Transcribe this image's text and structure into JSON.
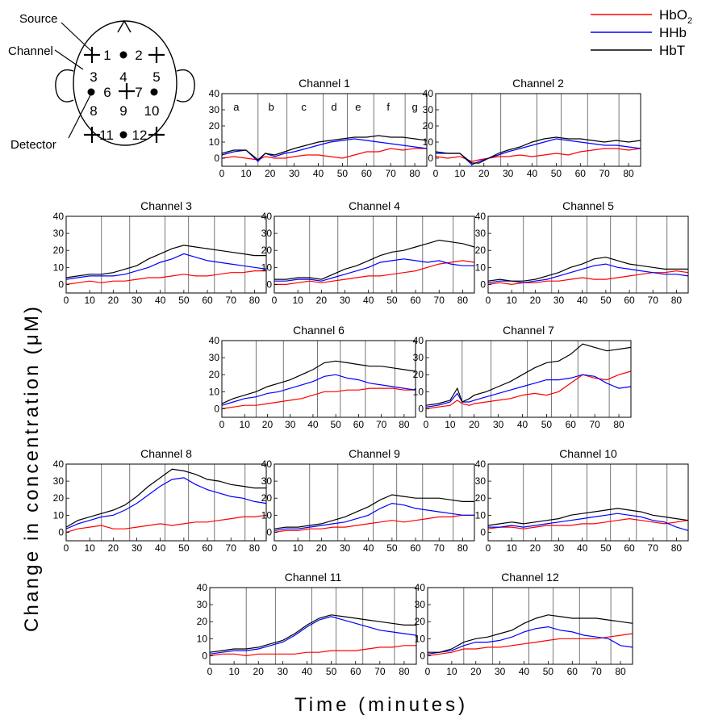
{
  "figure": {
    "ylabel": "Change in concentration (μM)",
    "xlabel": "Time (minutes)"
  },
  "head_diagram": {
    "labels": {
      "source": "Source",
      "channel": "Channel",
      "detector": "Detector"
    },
    "channel_numbers": [
      "1",
      "2",
      "3",
      "4",
      "5",
      "6",
      "7",
      "8",
      "9",
      "10",
      "11",
      "12"
    ]
  },
  "legend": [
    {
      "name": "HbO",
      "subscript": "2",
      "color": "#ff0000"
    },
    {
      "name": "HHb",
      "subscript": "",
      "color": "#0000ff"
    },
    {
      "name": "HbT",
      "subscript": "",
      "color": "#000000"
    }
  ],
  "chart_data": {
    "type": "line",
    "x_ticks": [
      0,
      10,
      20,
      30,
      40,
      50,
      60,
      70,
      80
    ],
    "y_ticks": [
      0,
      10,
      20,
      30,
      40
    ],
    "xlim": [
      0,
      85
    ],
    "ylim": [
      -5,
      40
    ],
    "grid": "vertical lines at epoch boundaries",
    "epoch_boundaries": [
      15,
      27,
      42,
      52,
      63,
      76
    ],
    "epoch_labels": [
      {
        "label": "a",
        "x": 6
      },
      {
        "label": "b",
        "x": 20.5
      },
      {
        "label": "c",
        "x": 34
      },
      {
        "label": "d",
        "x": 46.5
      },
      {
        "label": "e",
        "x": 56.5
      },
      {
        "label": "f",
        "x": 69
      },
      {
        "label": "g",
        "x": 80
      }
    ],
    "series_order": [
      "HbO2",
      "HHb",
      "HbT"
    ],
    "channels": [
      {
        "title": "Channel 1",
        "x": [
          0,
          5,
          10,
          15,
          18,
          22,
          26,
          30,
          35,
          40,
          45,
          50,
          55,
          60,
          65,
          70,
          75,
          80,
          85
        ],
        "HbO2": [
          0,
          1,
          0,
          -1,
          1,
          0,
          0,
          1,
          2,
          2,
          1,
          0,
          2,
          4,
          4,
          6,
          5,
          6,
          6
        ],
        "HHb": [
          2,
          4,
          5,
          -2,
          3,
          1,
          3,
          4,
          6,
          8,
          10,
          11,
          12,
          11,
          10,
          9,
          8,
          7,
          6
        ],
        "HbT": [
          3,
          5,
          5,
          -1,
          3,
          2,
          4,
          6,
          8,
          10,
          11,
          12,
          13,
          13,
          14,
          13,
          13,
          12,
          11
        ]
      },
      {
        "title": "Channel 2",
        "x": [
          0,
          5,
          10,
          15,
          18,
          22,
          26,
          30,
          35,
          40,
          45,
          50,
          55,
          60,
          65,
          70,
          75,
          80,
          85
        ],
        "HbO2": [
          1,
          0,
          1,
          -2,
          -1,
          0,
          1,
          1,
          2,
          1,
          2,
          3,
          2,
          4,
          5,
          6,
          6,
          5,
          6
        ],
        "HHb": [
          3,
          3,
          3,
          -4,
          -2,
          0,
          2,
          4,
          6,
          8,
          10,
          12,
          11,
          10,
          9,
          8,
          8,
          7,
          6
        ],
        "HbT": [
          4,
          3,
          3,
          -3,
          -3,
          0,
          3,
          5,
          7,
          10,
          12,
          13,
          12,
          12,
          11,
          10,
          11,
          10,
          11
        ]
      },
      {
        "title": "Channel 3",
        "x": [
          0,
          5,
          10,
          15,
          20,
          25,
          30,
          35,
          40,
          45,
          50,
          55,
          60,
          65,
          70,
          75,
          80,
          85
        ],
        "HbO2": [
          0,
          1,
          2,
          1,
          2,
          2,
          3,
          4,
          4,
          5,
          6,
          5,
          5,
          6,
          7,
          7,
          8,
          8
        ],
        "HHb": [
          3,
          4,
          5,
          5,
          5,
          6,
          8,
          10,
          13,
          15,
          18,
          16,
          14,
          13,
          12,
          11,
          10,
          9
        ],
        "HbT": [
          4,
          5,
          6,
          6,
          7,
          9,
          11,
          15,
          18,
          21,
          23,
          22,
          21,
          20,
          19,
          18,
          17,
          17
        ]
      },
      {
        "title": "Channel 4",
        "x": [
          0,
          5,
          10,
          15,
          20,
          25,
          30,
          35,
          40,
          45,
          50,
          55,
          60,
          65,
          70,
          75,
          80,
          85
        ],
        "HbO2": [
          0,
          0,
          1,
          2,
          1,
          2,
          3,
          4,
          5,
          5,
          6,
          7,
          8,
          10,
          12,
          13,
          14,
          13
        ],
        "HHb": [
          2,
          2,
          3,
          3,
          2,
          4,
          6,
          8,
          10,
          13,
          14,
          15,
          14,
          13,
          14,
          12,
          11,
          11
        ],
        "HbT": [
          3,
          3,
          4,
          4,
          3,
          6,
          9,
          11,
          14,
          17,
          19,
          20,
          22,
          24,
          26,
          25,
          24,
          22
        ]
      },
      {
        "title": "Channel 5",
        "x": [
          0,
          5,
          10,
          15,
          20,
          25,
          30,
          35,
          40,
          45,
          50,
          55,
          60,
          65,
          70,
          75,
          80,
          85
        ],
        "HbO2": [
          0,
          1,
          0,
          1,
          1,
          2,
          2,
          3,
          4,
          3,
          3,
          4,
          5,
          6,
          7,
          7,
          8,
          7
        ],
        "HHb": [
          1,
          2,
          2,
          1,
          2,
          3,
          5,
          7,
          9,
          11,
          12,
          10,
          9,
          8,
          7,
          6,
          6,
          5
        ],
        "HbT": [
          2,
          3,
          2,
          2,
          3,
          5,
          7,
          10,
          12,
          15,
          16,
          14,
          12,
          11,
          10,
          9,
          9,
          9
        ]
      },
      {
        "title": "Channel 6",
        "x": [
          0,
          5,
          10,
          15,
          20,
          25,
          30,
          35,
          40,
          45,
          50,
          55,
          60,
          65,
          70,
          75,
          80,
          85
        ],
        "HbO2": [
          0,
          1,
          2,
          2,
          3,
          4,
          5,
          6,
          8,
          10,
          10,
          11,
          11,
          12,
          12,
          12,
          11,
          11
        ],
        "HHb": [
          2,
          4,
          6,
          7,
          9,
          10,
          12,
          14,
          16,
          19,
          20,
          18,
          17,
          15,
          14,
          13,
          12,
          11
        ],
        "HbT": [
          3,
          6,
          8,
          10,
          13,
          15,
          17,
          20,
          23,
          27,
          28,
          27,
          26,
          25,
          25,
          24,
          23,
          22
        ]
      },
      {
        "title": "Channel 7",
        "x": [
          0,
          5,
          10,
          13,
          15,
          18,
          20,
          25,
          30,
          35,
          40,
          45,
          50,
          55,
          60,
          65,
          70,
          75,
          80,
          85
        ],
        "HbO2": [
          0,
          1,
          2,
          5,
          3,
          2,
          3,
          4,
          5,
          6,
          8,
          9,
          8,
          10,
          15,
          20,
          18,
          17,
          20,
          22
        ],
        "HHb": [
          1,
          2,
          4,
          9,
          4,
          4,
          5,
          7,
          9,
          11,
          13,
          15,
          17,
          17,
          18,
          20,
          19,
          15,
          12,
          13
        ],
        "HbT": [
          2,
          3,
          5,
          12,
          4,
          6,
          8,
          10,
          13,
          16,
          20,
          24,
          27,
          28,
          32,
          38,
          36,
          34,
          35,
          36
        ]
      },
      {
        "title": "Channel 8",
        "x": [
          0,
          5,
          10,
          15,
          20,
          25,
          30,
          35,
          40,
          45,
          50,
          55,
          60,
          65,
          70,
          75,
          80,
          85
        ],
        "HbO2": [
          0,
          2,
          3,
          4,
          2,
          2,
          3,
          4,
          5,
          4,
          5,
          6,
          6,
          7,
          8,
          9,
          9,
          10
        ],
        "HHb": [
          2,
          5,
          7,
          9,
          10,
          13,
          17,
          22,
          27,
          31,
          32,
          28,
          25,
          23,
          21,
          20,
          18,
          17
        ],
        "HbT": [
          3,
          7,
          9,
          11,
          13,
          16,
          21,
          27,
          32,
          37,
          36,
          34,
          31,
          30,
          28,
          27,
          26,
          26
        ]
      },
      {
        "title": "Channel 9",
        "x": [
          0,
          5,
          10,
          15,
          20,
          25,
          30,
          35,
          40,
          45,
          50,
          55,
          60,
          65,
          70,
          75,
          80,
          85
        ],
        "HbO2": [
          0,
          1,
          1,
          2,
          2,
          3,
          3,
          4,
          5,
          6,
          7,
          6,
          7,
          8,
          9,
          9,
          10,
          10
        ],
        "HHb": [
          1,
          2,
          2,
          3,
          4,
          5,
          6,
          8,
          10,
          14,
          17,
          16,
          14,
          13,
          12,
          11,
          10,
          10
        ],
        "HbT": [
          2,
          3,
          3,
          4,
          5,
          7,
          9,
          12,
          15,
          19,
          22,
          21,
          20,
          20,
          20,
          19,
          18,
          18
        ]
      },
      {
        "title": "Channel 10",
        "x": [
          0,
          5,
          10,
          15,
          20,
          25,
          30,
          35,
          40,
          45,
          50,
          55,
          60,
          65,
          70,
          75,
          80,
          85
        ],
        "HbO2": [
          2,
          3,
          3,
          2,
          3,
          4,
          4,
          4,
          5,
          5,
          6,
          7,
          8,
          7,
          6,
          5,
          6,
          7
        ],
        "HHb": [
          3,
          3,
          4,
          3,
          4,
          5,
          6,
          7,
          8,
          9,
          10,
          11,
          10,
          9,
          7,
          6,
          3,
          1
        ],
        "HbT": [
          4,
          5,
          6,
          5,
          6,
          7,
          8,
          10,
          11,
          12,
          13,
          14,
          13,
          12,
          10,
          9,
          8,
          7
        ]
      },
      {
        "title": "Channel 11",
        "x": [
          0,
          5,
          10,
          15,
          20,
          25,
          30,
          35,
          40,
          45,
          50,
          55,
          60,
          65,
          70,
          75,
          80,
          85
        ],
        "HbO2": [
          0,
          1,
          1,
          0,
          1,
          1,
          1,
          1,
          2,
          2,
          3,
          3,
          3,
          4,
          5,
          5,
          6,
          6
        ],
        "HHb": [
          1,
          2,
          3,
          3,
          4,
          6,
          8,
          12,
          17,
          21,
          23,
          21,
          19,
          17,
          15,
          14,
          13,
          12
        ],
        "HbT": [
          2,
          3,
          4,
          4,
          5,
          7,
          9,
          13,
          18,
          22,
          24,
          23,
          22,
          21,
          20,
          19,
          18,
          18
        ]
      },
      {
        "title": "Channel 12",
        "x": [
          0,
          5,
          10,
          15,
          20,
          25,
          30,
          35,
          40,
          45,
          50,
          55,
          60,
          65,
          70,
          75,
          80,
          85
        ],
        "HbO2": [
          0,
          1,
          2,
          4,
          4,
          5,
          5,
          6,
          7,
          8,
          9,
          10,
          10,
          10,
          10,
          11,
          12,
          13
        ],
        "HHb": [
          1,
          2,
          3,
          6,
          8,
          8,
          9,
          11,
          14,
          16,
          17,
          15,
          14,
          12,
          11,
          10,
          6,
          5
        ],
        "HbT": [
          2,
          2,
          4,
          8,
          10,
          11,
          13,
          15,
          19,
          22,
          24,
          23,
          22,
          22,
          22,
          21,
          20,
          19
        ]
      }
    ]
  }
}
